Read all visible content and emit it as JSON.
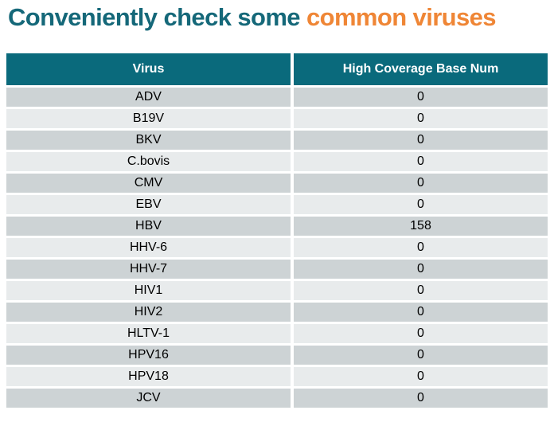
{
  "title": {
    "prefix": "Conveniently check some ",
    "highlight": "common viruses"
  },
  "colors": {
    "title_teal": "#156879",
    "title_orange": "#EF8636",
    "header_bg": "#0A6A7C",
    "header_fg": "#FFFFFF",
    "row_odd": "#CDD3D5",
    "row_even": "#E8EBEC",
    "cell_fg": "#000000"
  },
  "table": {
    "columns": [
      "Virus",
      "High Coverage Base Num"
    ],
    "rows": [
      {
        "virus": "ADV",
        "value": "0"
      },
      {
        "virus": "B19V",
        "value": "0"
      },
      {
        "virus": "BKV",
        "value": "0"
      },
      {
        "virus": "C.bovis",
        "value": "0"
      },
      {
        "virus": "CMV",
        "value": "0"
      },
      {
        "virus": "EBV",
        "value": "0"
      },
      {
        "virus": "HBV",
        "value": "158"
      },
      {
        "virus": "HHV-6",
        "value": "0"
      },
      {
        "virus": "HHV-7",
        "value": "0"
      },
      {
        "virus": "HIV1",
        "value": "0"
      },
      {
        "virus": "HIV2",
        "value": "0"
      },
      {
        "virus": "HLTV-1",
        "value": "0"
      },
      {
        "virus": "HPV16",
        "value": "0"
      },
      {
        "virus": "HPV18",
        "value": "0"
      },
      {
        "virus": "JCV",
        "value": "0"
      }
    ]
  },
  "chart_data": {
    "type": "table",
    "title": "Conveniently check some common viruses",
    "columns": [
      "Virus",
      "High Coverage Base Num"
    ],
    "rows": [
      [
        "ADV",
        0
      ],
      [
        "B19V",
        0
      ],
      [
        "BKV",
        0
      ],
      [
        "C.bovis",
        0
      ],
      [
        "CMV",
        0
      ],
      [
        "EBV",
        0
      ],
      [
        "HBV",
        158
      ],
      [
        "HHV-6",
        0
      ],
      [
        "HHV-7",
        0
      ],
      [
        "HIV1",
        0
      ],
      [
        "HIV2",
        0
      ],
      [
        "HLTV-1",
        0
      ],
      [
        "HPV16",
        0
      ],
      [
        "HPV18",
        0
      ],
      [
        "JCV",
        0
      ]
    ],
    "layout": {
      "header_style": "solid teal band, white bold text",
      "row_style": "alternating gray bands starting dark, white 3px gaps",
      "alignment": "center"
    }
  }
}
